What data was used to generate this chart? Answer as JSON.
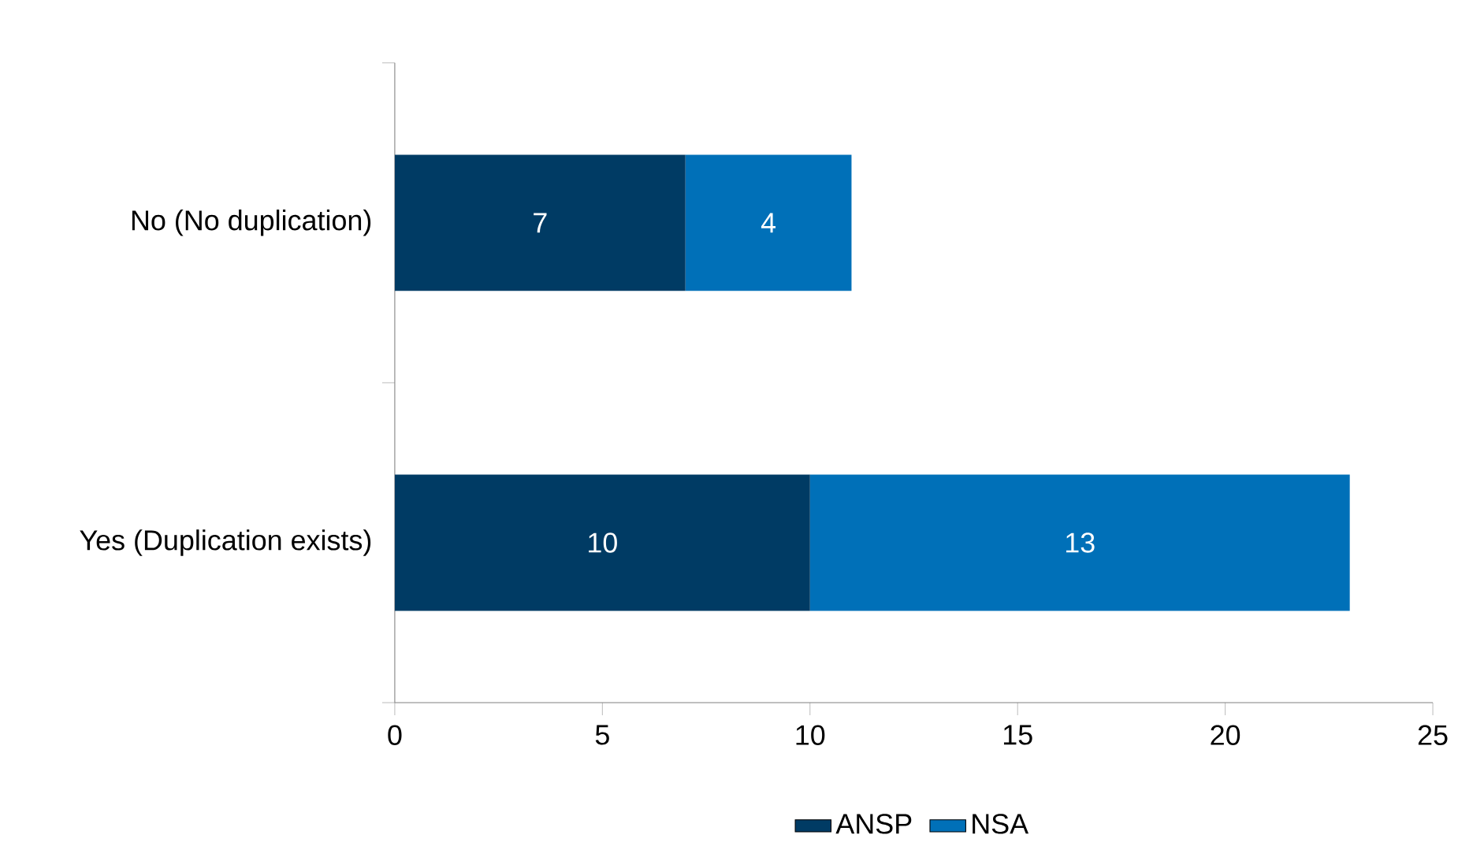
{
  "chart_data": {
    "type": "bar",
    "orientation": "horizontal",
    "stacked": true,
    "categories": [
      "No (No duplication)",
      "Yes (Duplication exists)"
    ],
    "series": [
      {
        "name": "ANSP",
        "color": "#003b64",
        "values": [
          7,
          10
        ]
      },
      {
        "name": "NSA",
        "color": "#0070b8",
        "values": [
          4,
          13
        ]
      }
    ],
    "xlim": [
      0,
      25
    ],
    "xticks": [
      0,
      5,
      10,
      15,
      20,
      25
    ],
    "data_labels": true,
    "legend": "bottom",
    "grid": false
  }
}
